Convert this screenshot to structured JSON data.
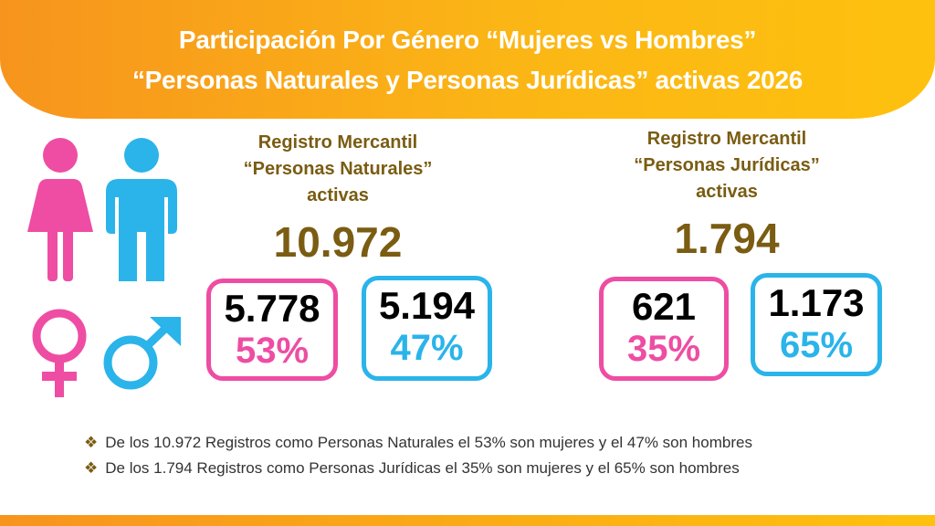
{
  "header": {
    "title_line1": "Participación Por Género “Mujeres vs Hombres”",
    "title_line2": "“Personas Naturales y Personas Jurídicas” activas 2026"
  },
  "icons": {
    "female_figure": "female-person-icon",
    "male_figure": "male-person-icon",
    "female_symbol": "venus-icon",
    "male_symbol": "mars-icon"
  },
  "colors": {
    "female": "#ee4da3",
    "male": "#2ab4ea",
    "banner": "#f7941d",
    "heading": "#7a5c12"
  },
  "naturales": {
    "line1": "Registro Mercantil",
    "line2": "“Personas Naturales”",
    "line3": "activas",
    "total": "10.972",
    "women_count": "5.778",
    "women_pct": "53%",
    "men_count": "5.194",
    "men_pct": "47%"
  },
  "juridicas": {
    "line1": "Registro Mercantil",
    "line2": "“Personas Jurídicas”",
    "line3": "activas",
    "total": "1.794",
    "women_count": "621",
    "women_pct": "35%",
    "men_count": "1.173",
    "men_pct": "65%"
  },
  "bullets": [
    "De los 10.972  Registros como Personas Naturales el 53% son mujeres y el 47% son hombres",
    "De los 1.794 Registros como Personas Jurídicas el 35% son mujeres y el 65% son hombres"
  ]
}
